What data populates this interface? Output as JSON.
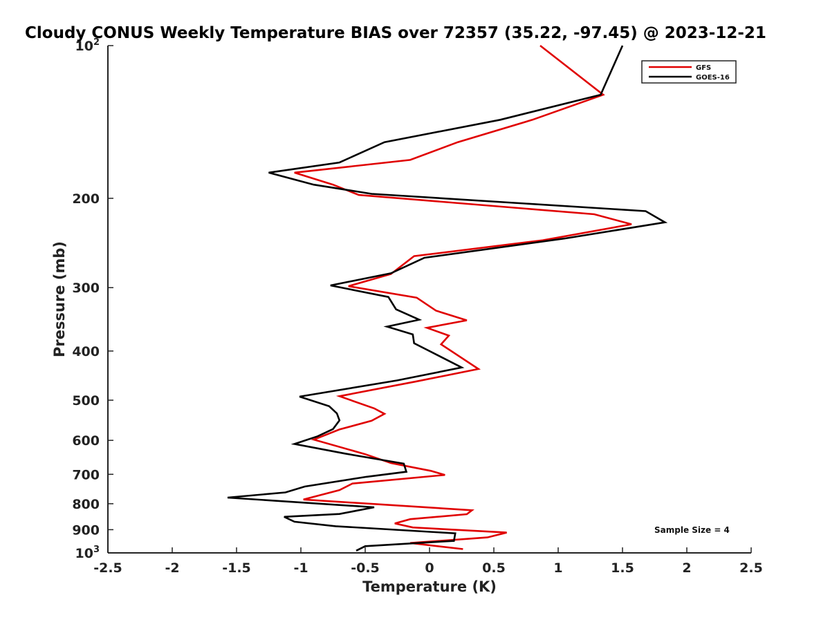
{
  "chart_data": {
    "type": "line",
    "title": "Cloudy CONUS Weekly Temperature BIAS over 72357 (35.22, -97.45) @ 2023-12-21",
    "xlabel": "Temperature (K)",
    "ylabel": "Pressure (mb)",
    "xlim": [
      -2.5,
      2.5
    ],
    "ylim": [
      100,
      1000
    ],
    "y_scale": "log",
    "y_reversed": true,
    "grid": false,
    "legend_position": "top-right",
    "x_ticks": [
      "-2.5",
      "-2",
      "-1.5",
      "-1",
      "-0.5",
      "0",
      "0.5",
      "1",
      "1.5",
      "2",
      "2.5"
    ],
    "y_ticks": [
      {
        "value": 100,
        "base": "10",
        "exp": "2"
      },
      {
        "value": 200,
        "label": "200"
      },
      {
        "value": 300,
        "label": "300"
      },
      {
        "value": 400,
        "label": "400"
      },
      {
        "value": 500,
        "label": "500"
      },
      {
        "value": 600,
        "label": "600"
      },
      {
        "value": 700,
        "label": "700"
      },
      {
        "value": 800,
        "label": "800"
      },
      {
        "value": 900,
        "label": "900"
      },
      {
        "value": 1000,
        "base": "10",
        "exp": "3"
      }
    ],
    "annotation": "Sample Size = 4",
    "series": [
      {
        "name": "GFS",
        "color": "#e00000",
        "x": [
          0.86,
          1.35,
          0.8,
          0.22,
          -0.15,
          -1.05,
          -0.75,
          -0.55,
          1.28,
          1.57,
          0.88,
          -0.12,
          -0.3,
          -0.63,
          -0.1,
          0.05,
          0.29,
          -0.02,
          0.15,
          0.09,
          0.38,
          -0.1,
          -0.7,
          -0.43,
          -0.35,
          -0.45,
          -0.7,
          -0.9,
          -0.5,
          -0.3,
          0.01,
          0.12,
          -0.6,
          -0.7,
          -0.98,
          0.33,
          0.29,
          -0.15,
          -0.27,
          -0.13,
          0.6,
          0.45,
          -0.15,
          0.26
        ],
        "y": [
          100,
          125,
          140,
          155,
          168,
          178,
          188,
          197,
          215,
          225,
          242,
          260,
          282,
          298,
          314,
          333,
          348,
          360,
          373,
          388,
          434,
          459,
          491,
          519,
          532,
          549,
          571,
          598,
          639,
          665,
          689,
          702,
          730,
          752,
          785,
          824,
          839,
          858,
          875,
          891,
          912,
          932,
          956,
          983
        ]
      },
      {
        "name": "GOES-16",
        "color": "#000000",
        "x": [
          1.5,
          1.33,
          0.55,
          -0.35,
          -0.7,
          -1.25,
          -0.9,
          -0.45,
          1.68,
          1.83,
          1.05,
          -0.04,
          -0.3,
          -0.77,
          -0.32,
          -0.26,
          -0.08,
          -0.33,
          -0.13,
          -0.12,
          0.25,
          -0.25,
          -1.01,
          -0.78,
          -0.72,
          -0.7,
          -0.75,
          -0.87,
          -1.05,
          -0.66,
          -0.2,
          -0.18,
          -0.49,
          -0.97,
          -1.12,
          -1.57,
          -0.43,
          -0.7,
          -1.13,
          -1.05,
          -0.73,
          0.2,
          0.19,
          -0.5,
          -0.57
        ],
        "y": [
          100,
          125,
          140,
          155,
          170,
          178,
          188,
          196,
          212,
          223,
          240,
          262,
          281,
          297,
          313,
          331,
          347,
          358,
          371,
          386,
          431,
          457,
          492,
          514,
          531,
          548,
          570,
          589,
          610,
          637,
          667,
          692,
          708,
          740,
          760,
          778,
          813,
          838,
          849,
          868,
          886,
          915,
          947,
          970,
          990
        ]
      }
    ]
  }
}
